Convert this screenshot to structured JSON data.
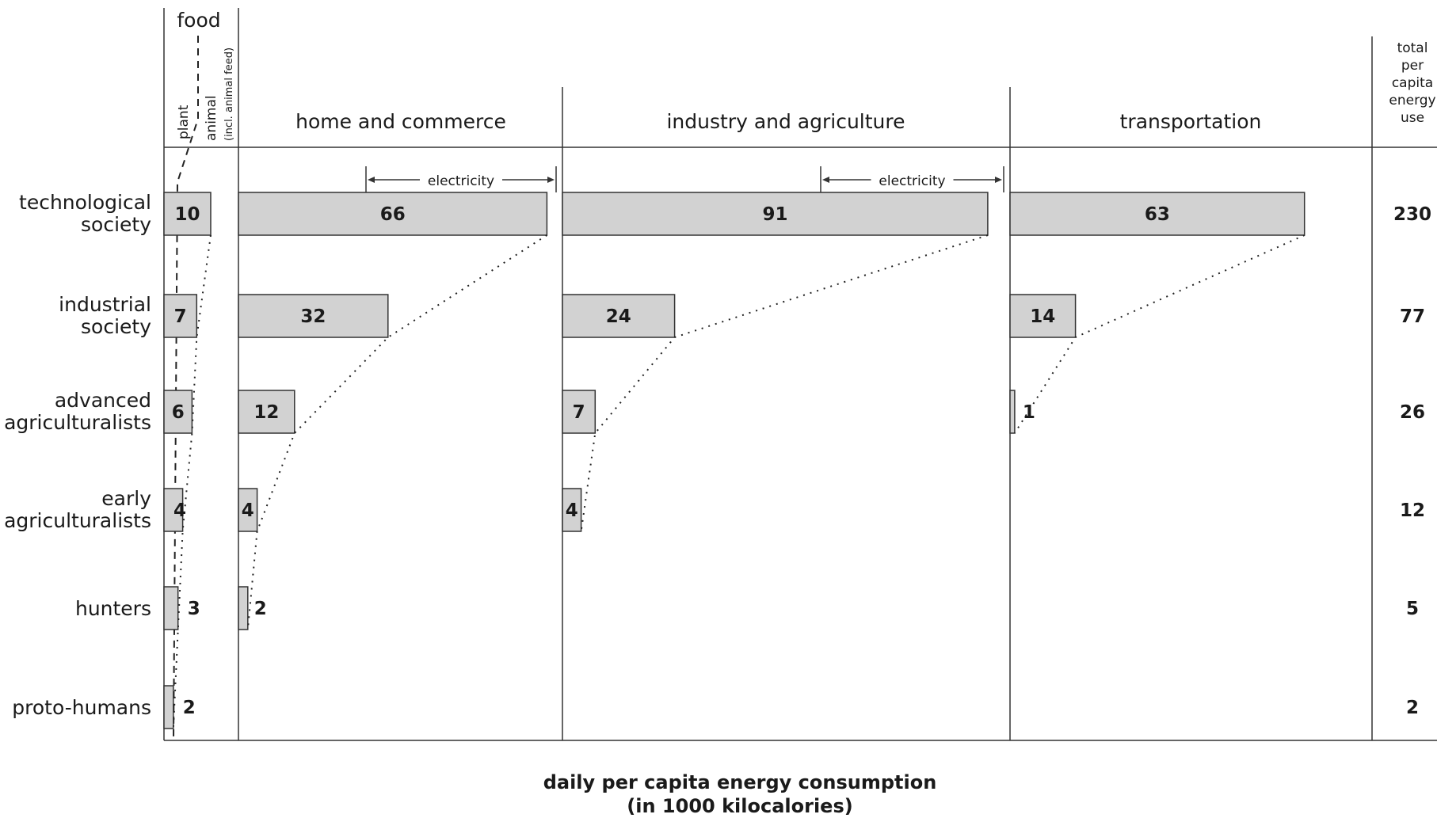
{
  "chart_data": {
    "type": "bar",
    "xlabel": "daily per capita energy consumption",
    "xlabel_units": "(in 1000 kilocalories)",
    "food_label": "food",
    "food_sublabels": {
      "plant": "plant",
      "animal": "animal",
      "animal_note": "(incl. animal feed)"
    },
    "electricity_label": "electricity",
    "total_header_lines": [
      "total",
      "per",
      "capita",
      "energy",
      "use"
    ],
    "categories": [
      "technological society",
      "industrial society",
      "advanced agriculturalists",
      "early agriculturalists",
      "hunters",
      "proto-humans"
    ],
    "category_lines": [
      [
        "technological",
        "society"
      ],
      [
        "industrial",
        "society"
      ],
      [
        "advanced",
        "agriculturalists"
      ],
      [
        "early",
        "agriculturalists"
      ],
      [
        "hunters"
      ],
      [
        "proto-humans"
      ]
    ],
    "series": [
      {
        "name": "food",
        "values": [
          10,
          7,
          6,
          4,
          3,
          2
        ],
        "labels": [
          "10",
          "7",
          "6",
          "4",
          "3",
          "2"
        ]
      },
      {
        "name": "home and commerce",
        "values": [
          66,
          32,
          12,
          4,
          2,
          0
        ],
        "labels": [
          "66",
          "32",
          "12",
          "4",
          "2",
          ""
        ]
      },
      {
        "name": "industry and agriculture",
        "values": [
          91,
          24,
          7,
          4,
          0,
          0
        ],
        "labels": [
          "91",
          "24",
          "7",
          "4",
          "",
          ""
        ]
      },
      {
        "name": "transportation",
        "values": [
          63,
          14,
          1,
          0,
          0,
          0
        ],
        "labels": [
          "63",
          "14",
          "1",
          "",
          "",
          ""
        ]
      }
    ],
    "totals": [
      230,
      77,
      26,
      12,
      5,
      2
    ],
    "total_labels": [
      "230",
      "77",
      "26",
      "12",
      "5",
      "2"
    ]
  }
}
